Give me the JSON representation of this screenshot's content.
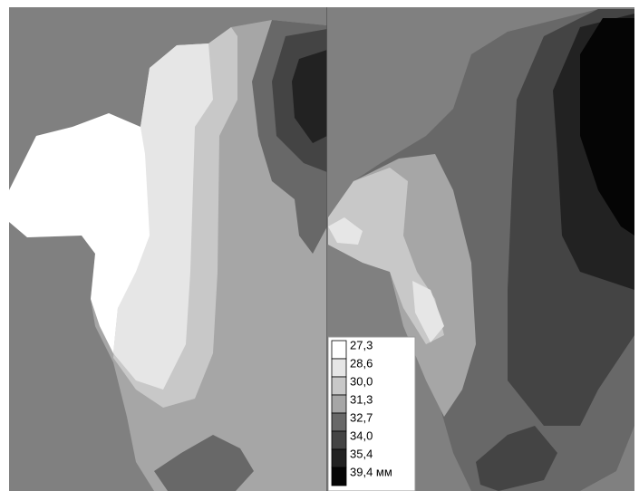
{
  "legend": {
    "items": [
      {
        "label": "27,3",
        "color": "#ffffff"
      },
      {
        "label": "28,6",
        "color": "#e6e6e6"
      },
      {
        "label": "30,0",
        "color": "#c8c8c8"
      },
      {
        "label": "31,3",
        "color": "#a6a6a6"
      },
      {
        "label": "32,7",
        "color": "#686868"
      },
      {
        "label": "34,0",
        "color": "#444444"
      },
      {
        "label": "35,4",
        "color": "#222222"
      },
      {
        "label": "39,4 мм",
        "color": "#050505"
      }
    ]
  }
}
